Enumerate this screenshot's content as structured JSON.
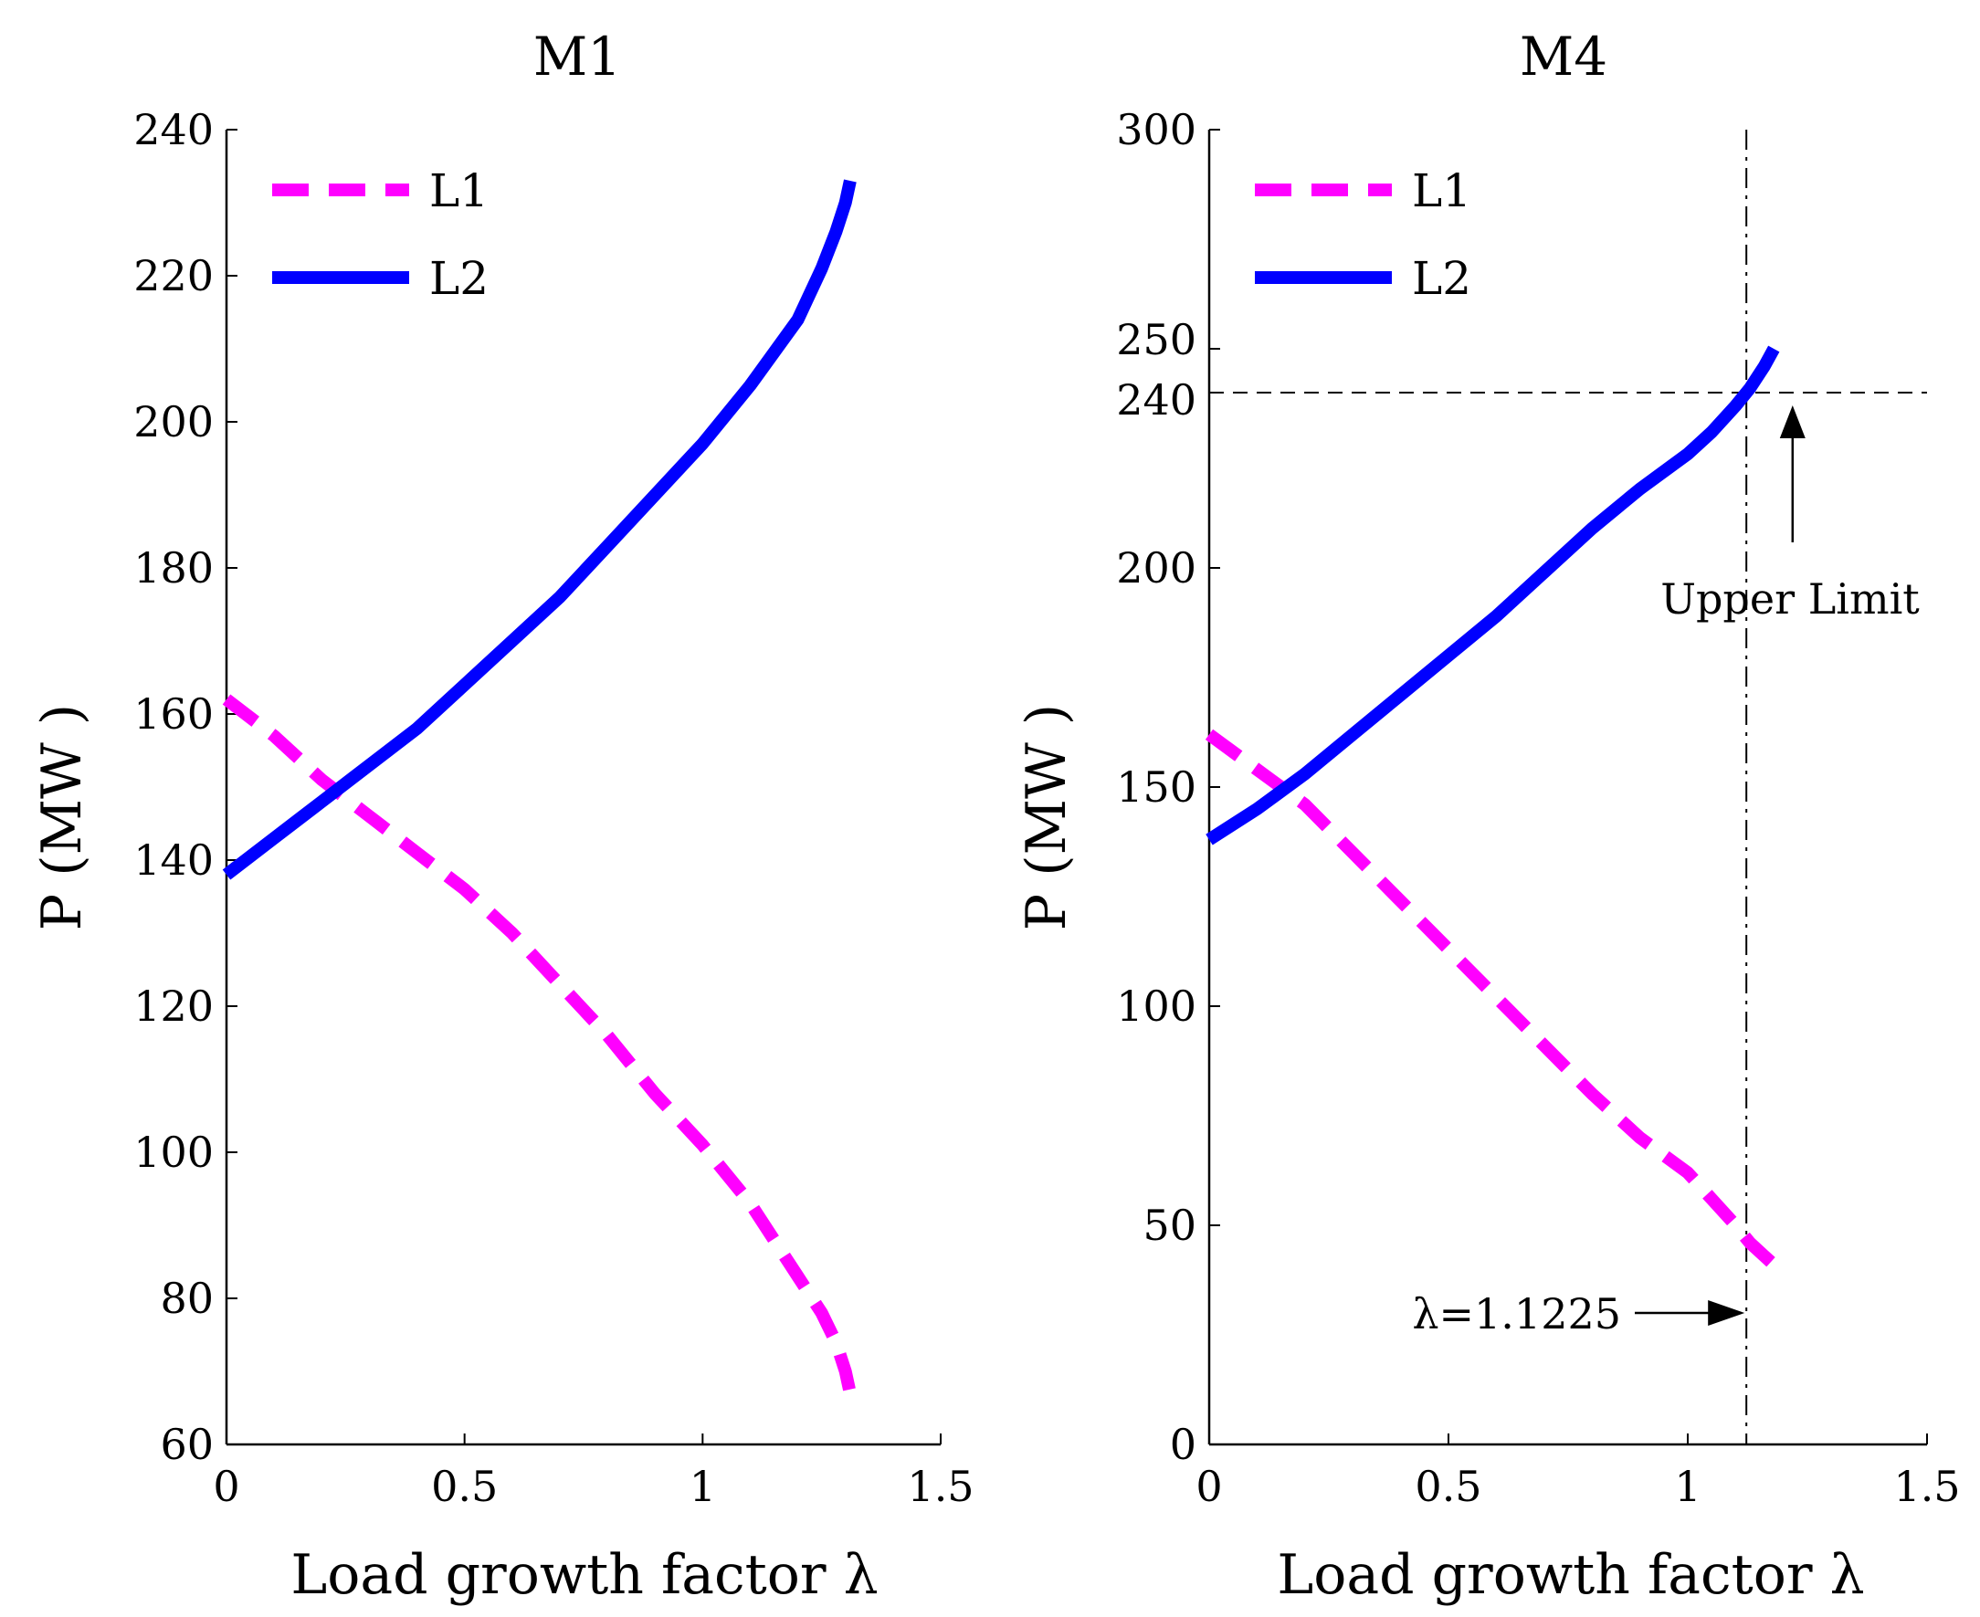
{
  "chart_data": [
    {
      "type": "line",
      "title": "M1",
      "xlabel": "Load growth factor λ",
      "ylabel": "P (MW )",
      "xlim": [
        0,
        1.5
      ],
      "ylim": [
        60,
        240
      ],
      "xticks": [
        0,
        0.5,
        1,
        1.5
      ],
      "xtick_labels": [
        "0",
        "0.5",
        "1",
        "1.5"
      ],
      "yticks": [
        60,
        80,
        100,
        120,
        140,
        160,
        180,
        200,
        220,
        240
      ],
      "ytick_labels": [
        "60",
        "80",
        "100",
        "120",
        "140",
        "160",
        "180",
        "200",
        "220",
        "240"
      ],
      "grid": false,
      "legend_position": "top-left",
      "series": [
        {
          "name": "L1",
          "color": "#ff00ff",
          "line_style": "dashed",
          "x": [
            0,
            0.1,
            0.2,
            0.3,
            0.4,
            0.5,
            0.6,
            0.7,
            0.8,
            0.9,
            1.0,
            1.1,
            1.2,
            1.25,
            1.28,
            1.3,
            1.31
          ],
          "y": [
            162,
            157,
            151,
            146,
            141,
            136,
            130,
            123,
            116,
            108,
            101,
            93,
            83,
            78,
            74,
            70,
            67
          ]
        },
        {
          "name": "L2",
          "color": "#0000ff",
          "line_style": "solid",
          "x": [
            0,
            0.1,
            0.2,
            0.3,
            0.4,
            0.5,
            0.6,
            0.7,
            0.8,
            0.9,
            1.0,
            1.1,
            1.2,
            1.25,
            1.28,
            1.3,
            1.31
          ],
          "y": [
            138,
            143,
            148,
            153,
            158,
            164,
            170,
            176,
            183,
            190,
            197,
            205,
            214,
            221,
            226,
            230,
            233
          ]
        }
      ]
    },
    {
      "type": "line",
      "title": "M4",
      "xlabel": "Load growth factor λ",
      "ylabel": "P (MW )",
      "xlim": [
        0,
        1.5
      ],
      "ylim": [
        0,
        300
      ],
      "xticks": [
        0,
        0.5,
        1,
        1.5
      ],
      "xtick_labels": [
        "0",
        "0.5",
        "1",
        "1.5"
      ],
      "yticks": [
        0,
        50,
        100,
        150,
        200,
        240,
        250,
        300
      ],
      "ytick_labels": [
        "0",
        "50",
        "100",
        "150",
        "200",
        "240",
        "250",
        "300"
      ],
      "grid": false,
      "legend_position": "top-left",
      "series": [
        {
          "name": "L1",
          "color": "#ff00ff",
          "line_style": "dashed",
          "x": [
            0,
            0.1,
            0.2,
            0.3,
            0.4,
            0.5,
            0.6,
            0.7,
            0.8,
            0.9,
            1.0,
            1.05,
            1.1,
            1.13,
            1.16,
            1.18
          ],
          "y": [
            162,
            154,
            146,
            135,
            124,
            113,
            102,
            91,
            80,
            70,
            62,
            56,
            50,
            46,
            43,
            41
          ]
        },
        {
          "name": "L2",
          "color": "#0000ff",
          "line_style": "solid",
          "x": [
            0,
            0.1,
            0.2,
            0.3,
            0.4,
            0.5,
            0.6,
            0.7,
            0.8,
            0.9,
            1.0,
            1.05,
            1.1,
            1.13,
            1.16,
            1.18
          ],
          "y": [
            138,
            145,
            153,
            162,
            171,
            180,
            189,
            199,
            209,
            218,
            226,
            231,
            237,
            241,
            246,
            250
          ]
        }
      ],
      "reference_lines": [
        {
          "orientation": "vertical",
          "value": 1.1225,
          "style": "dash-dot"
        },
        {
          "orientation": "horizontal",
          "value": 240,
          "style": "dashed"
        }
      ],
      "annotations": [
        {
          "text": "Upper Limit",
          "x": 1.2,
          "y": 196,
          "arrow_to": [
            1.2,
            240
          ]
        },
        {
          "text": "λ=1.1225",
          "x": 0.85,
          "y": 30,
          "arrow_to": [
            1.1225,
            30
          ]
        }
      ]
    }
  ]
}
